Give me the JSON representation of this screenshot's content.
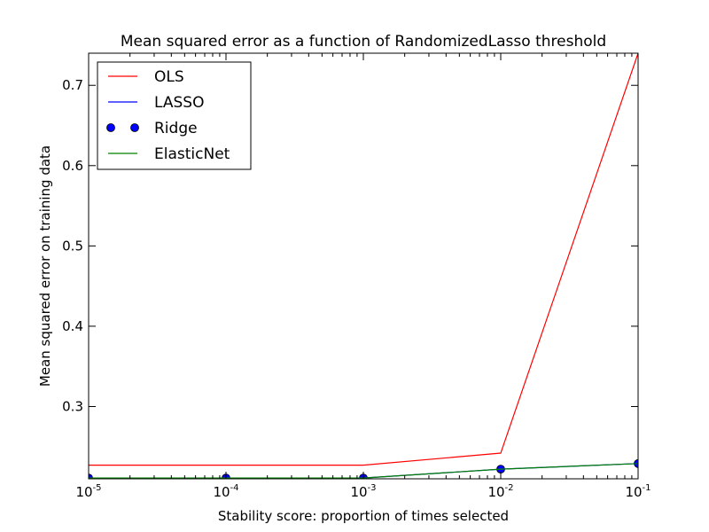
{
  "chart_data": {
    "type": "line",
    "title": "Mean squared error as a function of RandomizedLasso threshold",
    "xlabel": "Stability score: proportion of times selected",
    "ylabel": "Mean squared error on training data",
    "x_scale": "log",
    "x": [
      1e-05,
      0.0001,
      0.001,
      0.01,
      0.1
    ],
    "xlim": [
      1e-05,
      0.1
    ],
    "ylim": [
      0.21,
      0.74
    ],
    "x_ticks": [
      {
        "value": 1e-05,
        "base": "10",
        "exp": "-5"
      },
      {
        "value": 0.0001,
        "base": "10",
        "exp": "-4"
      },
      {
        "value": 0.001,
        "base": "10",
        "exp": "-3"
      },
      {
        "value": 0.01,
        "base": "10",
        "exp": "-2"
      },
      {
        "value": 0.1,
        "base": "10",
        "exp": "-1"
      }
    ],
    "y_ticks": [
      {
        "value": 0.3,
        "label": "0.3"
      },
      {
        "value": 0.4,
        "label": "0.4"
      },
      {
        "value": 0.5,
        "label": "0.5"
      },
      {
        "value": 0.6,
        "label": "0.6"
      },
      {
        "value": 0.7,
        "label": "0.7"
      }
    ],
    "grid": false,
    "legend_position": "top-left",
    "series": [
      {
        "name": "OLS",
        "values": [
          0.227,
          0.227,
          0.227,
          0.242,
          0.74
        ],
        "color": "#ff0000",
        "style": "line"
      },
      {
        "name": "LASSO",
        "values": [
          0.211,
          0.211,
          0.211,
          0.222,
          0.229
        ],
        "color": "#0000ff",
        "style": "line"
      },
      {
        "name": "Ridge",
        "values": [
          0.211,
          0.211,
          0.211,
          0.222,
          0.229
        ],
        "color": "#0000ff",
        "style": "marker"
      },
      {
        "name": "ElasticNet",
        "values": [
          0.211,
          0.211,
          0.211,
          0.222,
          0.229
        ],
        "color": "#008000",
        "style": "line"
      }
    ]
  }
}
